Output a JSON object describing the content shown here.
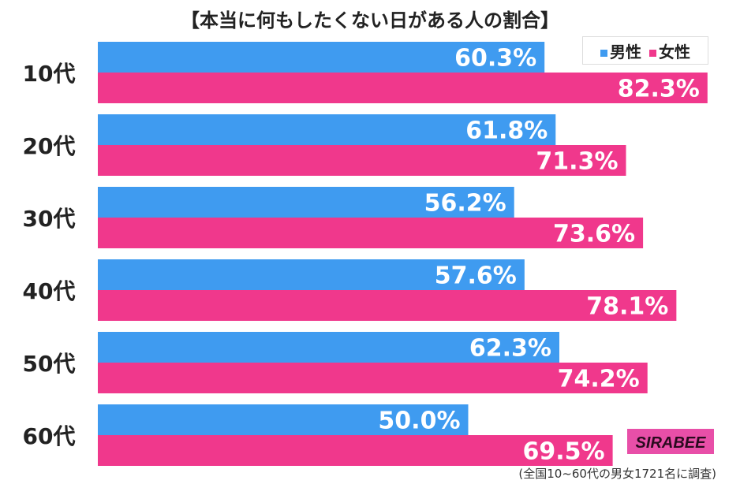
{
  "chart_data": {
    "type": "bar",
    "orientation": "horizontal",
    "title": "【本当に何もしたくない日がある人の割合】",
    "categories": [
      "10代",
      "20代",
      "30代",
      "40代",
      "50代",
      "60代"
    ],
    "series": [
      {
        "name": "男性",
        "color": "#3f9bf0",
        "values": [
          60.3,
          61.8,
          56.2,
          57.6,
          62.3,
          50.0
        ]
      },
      {
        "name": "女性",
        "color": "#f0388c",
        "values": [
          82.3,
          71.3,
          73.6,
          78.1,
          74.2,
          69.5
        ]
      }
    ],
    "unit": "%",
    "xlim": [
      0,
      100
    ],
    "grid": false,
    "legend_position": "top-right",
    "note": "(全国10~60代の男女1721名に調査)",
    "logo": "SIRABEE"
  }
}
